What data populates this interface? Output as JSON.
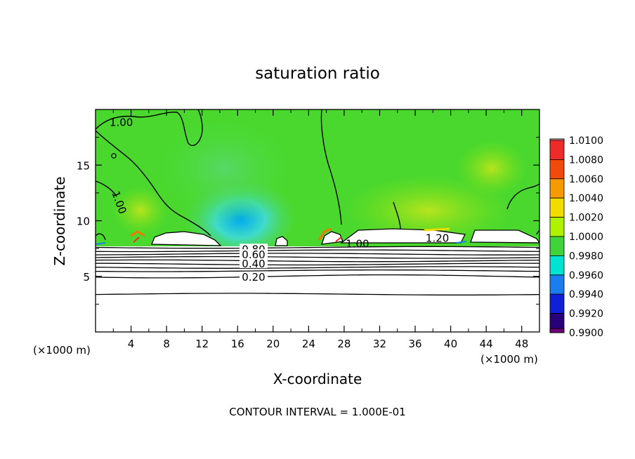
{
  "chart_data": {
    "type": "heatmap",
    "title": "saturation ratio",
    "xlabel": "X-coordinate",
    "ylabel": "Z-coordinate",
    "x_unit_left": "(×1000 m)",
    "x_unit_right": "(×1000 m)",
    "xlim": [
      0,
      50
    ],
    "ylim": [
      0,
      20
    ],
    "x_ticks": [
      4,
      8,
      12,
      16,
      20,
      24,
      28,
      32,
      36,
      40,
      44,
      48
    ],
    "y_ticks": [
      5,
      10,
      15
    ],
    "footer": "CONTOUR INTERVAL = 1.000E-01",
    "colorbar": {
      "levels": [
        "1.0100",
        "1.0080",
        "1.0060",
        "1.0040",
        "1.0020",
        "1.0000",
        "0.9980",
        "0.9960",
        "0.9940",
        "0.9920",
        "0.9900"
      ],
      "colors": [
        "#f4a0a0",
        "#ee2a2a",
        "#f24a0a",
        "#f79a00",
        "#f2dc00",
        "#aef200",
        "#3ed43a",
        "#00e2d2",
        "#1a7ef0",
        "#1020d8",
        "#28007a",
        "#6e007a"
      ]
    },
    "contour_labels": [
      {
        "text": "1.00",
        "x": 2.9,
        "z": 18.7
      },
      {
        "text": "1.00",
        "x": 2.5,
        "z": 11.6
      },
      {
        "text": "1.00",
        "x": 29.5,
        "z": 7.8
      },
      {
        "text": "1.20",
        "x": 38.5,
        "z": 8.3
      },
      {
        "text": "0.80",
        "x": 17.8,
        "z": 7.3
      },
      {
        "text": "0.60",
        "x": 17.8,
        "z": 6.8
      },
      {
        "text": "0.40",
        "x": 17.8,
        "z": 6.0
      },
      {
        "text": "0.20",
        "x": 17.8,
        "z": 4.8
      }
    ],
    "low_level_contours_z": [
      7.6,
      7.3,
      7.0,
      6.7,
      6.4,
      6.1,
      5.8,
      5.5,
      5.0,
      3.4
    ],
    "grid": false
  }
}
